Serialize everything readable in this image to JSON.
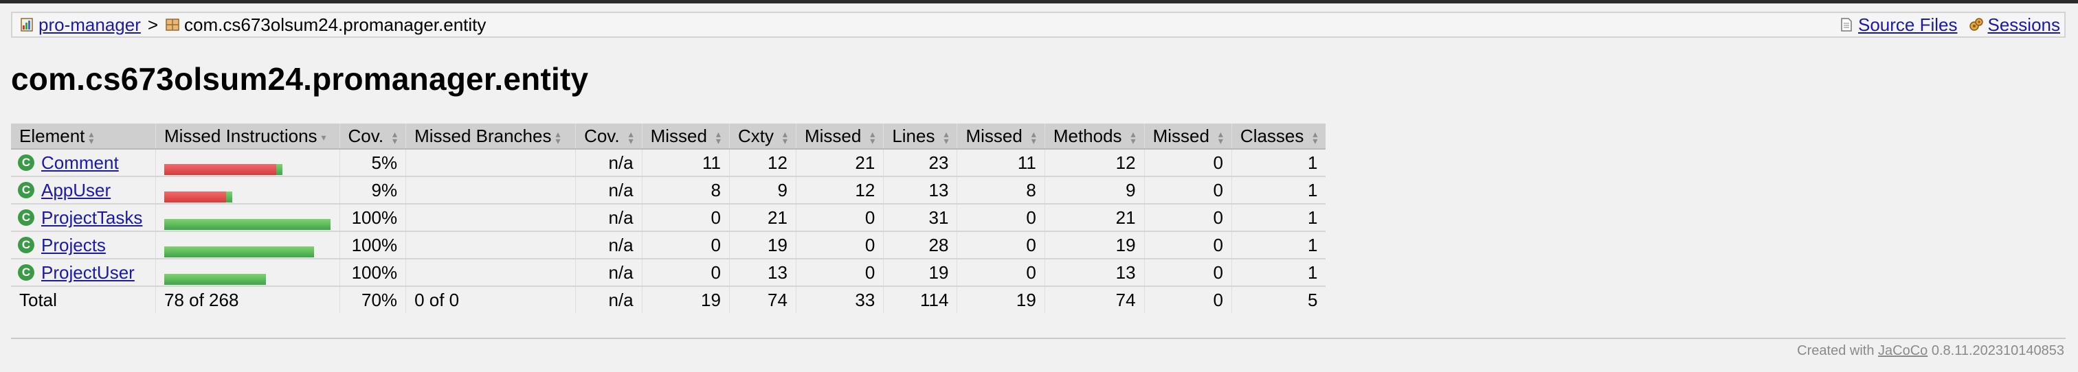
{
  "breadcrumb": {
    "root_label": "pro-manager",
    "separator": ">",
    "current": "com.cs673olsum24.promanager.entity",
    "source_files": "Source Files",
    "sessions": "Sessions"
  },
  "page_title": "com.cs673olsum24.promanager.entity",
  "table": {
    "headers": {
      "element": "Element",
      "missed_instructions": "Missed Instructions",
      "cov_instr": "Cov.",
      "missed_branches": "Missed Branches",
      "cov_branch": "Cov.",
      "missed_cxty": "Missed",
      "cxty": "Cxty",
      "missed_lines": "Missed",
      "lines": "Lines",
      "missed_methods": "Missed",
      "methods": "Methods",
      "missed_classes": "Missed",
      "classes": "Classes"
    },
    "rows": [
      {
        "name": "Comment",
        "coverage": "5%",
        "branches": "n/a",
        "missed_cxty": "11",
        "cxty": "12",
        "missed_lines": "21",
        "lines": "23",
        "missed_methods": "11",
        "methods": "12",
        "missed_classes": "0",
        "classes": "1"
      },
      {
        "name": "AppUser",
        "coverage": "9%",
        "branches": "n/a",
        "missed_cxty": "8",
        "cxty": "9",
        "missed_lines": "12",
        "lines": "13",
        "missed_methods": "8",
        "methods": "9",
        "missed_classes": "0",
        "classes": "1"
      },
      {
        "name": "ProjectTasks",
        "coverage": "100%",
        "branches": "n/a",
        "missed_cxty": "0",
        "cxty": "21",
        "missed_lines": "0",
        "lines": "31",
        "missed_methods": "0",
        "methods": "21",
        "missed_classes": "0",
        "classes": "1"
      },
      {
        "name": "Projects",
        "coverage": "100%",
        "branches": "n/a",
        "missed_cxty": "0",
        "cxty": "19",
        "missed_lines": "0",
        "lines": "28",
        "missed_methods": "0",
        "methods": "19",
        "missed_classes": "0",
        "classes": "1"
      },
      {
        "name": "ProjectUser",
        "coverage": "100%",
        "branches": "n/a",
        "missed_cxty": "0",
        "cxty": "13",
        "missed_lines": "0",
        "lines": "19",
        "missed_methods": "0",
        "methods": "13",
        "missed_classes": "0",
        "classes": "1"
      }
    ],
    "bar_fractions": [
      {
        "covered": 0.05,
        "relative_size": 0.71
      },
      {
        "covered": 0.09,
        "relative_size": 0.41
      },
      {
        "covered": 1.0,
        "relative_size": 1.0
      },
      {
        "covered": 1.0,
        "relative_size": 0.9
      },
      {
        "covered": 1.0,
        "relative_size": 0.61
      }
    ],
    "total": {
      "label": "Total",
      "missed_instructions": "78 of 268",
      "cov_instr": "70%",
      "missed_branches": "0 of 0",
      "cov_branch": "n/a",
      "missed_cxty": "19",
      "cxty": "74",
      "missed_lines": "33",
      "lines": "114",
      "missed_methods": "19",
      "methods": "74",
      "missed_classes": "0",
      "classes": "5"
    }
  },
  "footer": {
    "prefix": "Created with",
    "link": "JaCoCo",
    "version": "0.8.11.202310140853"
  },
  "colors": {
    "missed": "#d43a3a",
    "covered": "#3ea64a",
    "class_icon": "#3c9a46"
  }
}
